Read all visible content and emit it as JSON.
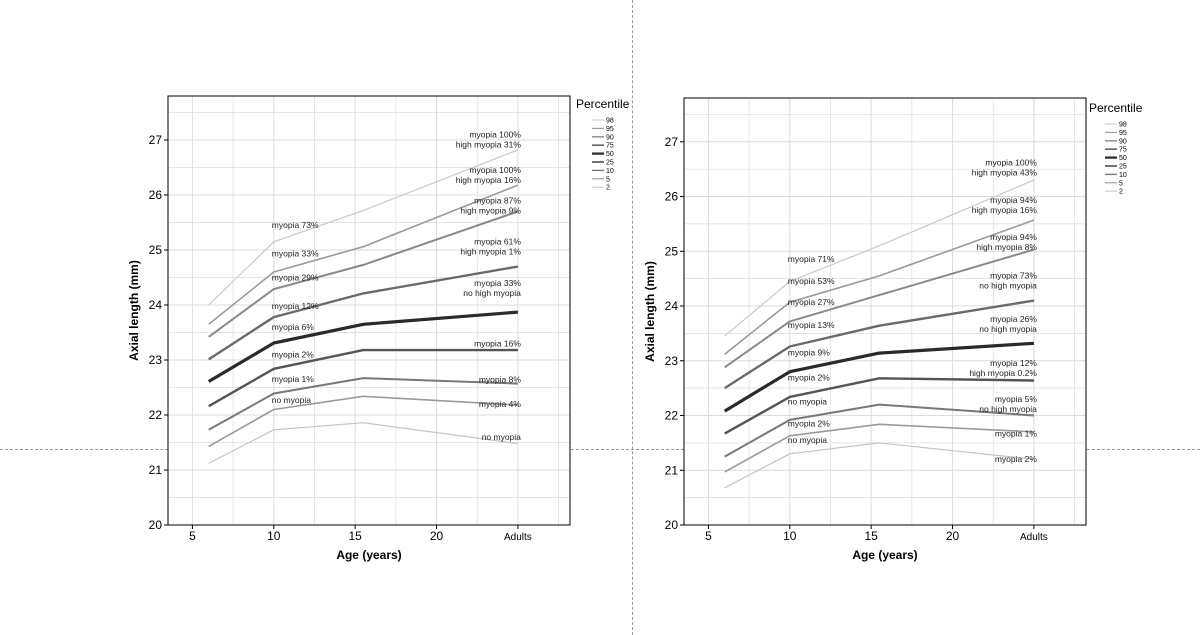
{
  "colors": {
    "p98": "#c8c8c8",
    "p95": "#9a9a9a",
    "p90": "#8a8a8a",
    "p75": "#6a6a6a",
    "p50": "#2a2a2a",
    "p25": "#555555",
    "p10": "#777777",
    "p5": "#9a9a9a",
    "p2": "#c4c4c4",
    "grid": "#dcdcdc",
    "axis": "#000000",
    "divider": "#9a9a9a"
  },
  "chart_data": [
    {
      "type": "line",
      "xlabel": "Age (years)",
      "ylabel": "Axial length (mm)",
      "xlim": [
        3.5,
        28.2
      ],
      "ylim": [
        20,
        27.8
      ],
      "x_ticks": [
        {
          "value": 5,
          "label": "5"
        },
        {
          "value": 10,
          "label": "10"
        },
        {
          "value": 15,
          "label": "15"
        },
        {
          "value": 20,
          "label": "20"
        },
        {
          "value": 25,
          "label": "Adults"
        }
      ],
      "y_ticks": [
        20,
        21,
        22,
        23,
        24,
        25,
        26,
        27
      ],
      "x": [
        6,
        10,
        15.5,
        25
      ],
      "legend_title": "Percentile",
      "legend_position": "right",
      "series": [
        {
          "name": "98",
          "color_key": "p98",
          "width": 1.2,
          "values": [
            24.0,
            25.15,
            25.72,
            26.82
          ]
        },
        {
          "name": "95",
          "color_key": "p95",
          "width": 1.6,
          "values": [
            23.65,
            24.6,
            25.06,
            26.18
          ]
        },
        {
          "name": "90",
          "color_key": "p90",
          "width": 2.0,
          "values": [
            23.42,
            24.29,
            24.73,
            25.7
          ]
        },
        {
          "name": "75",
          "color_key": "p75",
          "width": 2.4,
          "values": [
            23.01,
            23.78,
            24.21,
            24.7
          ]
        },
        {
          "name": "50",
          "color_key": "p50",
          "width": 3.2,
          "values": [
            22.61,
            23.31,
            23.65,
            23.87
          ]
        },
        {
          "name": "25",
          "color_key": "p25",
          "width": 2.4,
          "values": [
            22.16,
            22.84,
            23.18,
            23.18
          ]
        },
        {
          "name": "10",
          "color_key": "p10",
          "width": 2.0,
          "values": [
            21.73,
            22.39,
            22.67,
            22.57
          ]
        },
        {
          "name": "5",
          "color_key": "p5",
          "width": 1.6,
          "values": [
            21.43,
            22.1,
            22.34,
            22.18
          ]
        },
        {
          "name": "2",
          "color_key": "p2",
          "width": 1.2,
          "values": [
            21.12,
            21.73,
            21.86,
            21.48
          ]
        }
      ],
      "annotations_mid": [
        {
          "x": 10,
          "y": 25.4,
          "text": "myopia 73%"
        },
        {
          "x": 10,
          "y": 24.88,
          "text": "myopia 33%"
        },
        {
          "x": 10,
          "y": 24.45,
          "text": "myopia 29%"
        },
        {
          "x": 10,
          "y": 23.93,
          "text": "myopia 12%"
        },
        {
          "x": 10,
          "y": 23.55,
          "text": "myopia 6%"
        },
        {
          "x": 10,
          "y": 23.05,
          "text": "myopia 2%"
        },
        {
          "x": 10,
          "y": 22.6,
          "text": "myopia 1%"
        },
        {
          "x": 10,
          "y": 22.22,
          "text": "no myopia"
        }
      ],
      "annotations_end": [
        {
          "y": 27.05,
          "lines": [
            "myopia 100%",
            "high myopia 31%"
          ]
        },
        {
          "y": 26.4,
          "lines": [
            "myopia 100%",
            "high myopia 16%"
          ]
        },
        {
          "y": 25.85,
          "lines": [
            "myopia 87%",
            "high myopia 9%"
          ]
        },
        {
          "y": 25.1,
          "lines": [
            "myopia 61%",
            "high myopia 1%"
          ]
        },
        {
          "y": 24.35,
          "lines": [
            "myopia 33%",
            "no high myopia"
          ]
        },
        {
          "y": 23.43,
          "lines": [
            "myopia 16%"
          ]
        },
        {
          "y": 22.77,
          "lines": [
            "myopia 8%"
          ]
        },
        {
          "y": 22.33,
          "lines": [
            "myopia 4%"
          ]
        },
        {
          "y": 21.73,
          "lines": [
            "no myopia"
          ]
        }
      ]
    },
    {
      "type": "line",
      "xlabel": "Age (years)",
      "ylabel": "Axial length (mm)",
      "xlim": [
        3.5,
        28.2
      ],
      "ylim": [
        20,
        27.8
      ],
      "x_ticks": [
        {
          "value": 5,
          "label": "5"
        },
        {
          "value": 10,
          "label": "10"
        },
        {
          "value": 15,
          "label": "15"
        },
        {
          "value": 20,
          "label": "20"
        },
        {
          "value": 25,
          "label": "Adults"
        }
      ],
      "y_ticks": [
        20,
        21,
        22,
        23,
        24,
        25,
        26,
        27
      ],
      "x": [
        6,
        10,
        15.5,
        25
      ],
      "legend_title": "Percentile",
      "legend_position": "right",
      "series": [
        {
          "name": "98",
          "color_key": "p98",
          "width": 1.2,
          "values": [
            23.45,
            24.45,
            25.1,
            26.3
          ]
        },
        {
          "name": "95",
          "color_key": "p95",
          "width": 1.6,
          "values": [
            23.12,
            24.07,
            24.55,
            25.57
          ]
        },
        {
          "name": "90",
          "color_key": "p90",
          "width": 2.0,
          "values": [
            22.88,
            23.72,
            24.2,
            25.03
          ]
        },
        {
          "name": "75",
          "color_key": "p75",
          "width": 2.4,
          "values": [
            22.5,
            23.26,
            23.64,
            24.1
          ]
        },
        {
          "name": "50",
          "color_key": "p50",
          "width": 3.2,
          "values": [
            22.08,
            22.8,
            23.14,
            23.32
          ]
        },
        {
          "name": "25",
          "color_key": "p25",
          "width": 2.4,
          "values": [
            21.67,
            22.34,
            22.68,
            22.64
          ]
        },
        {
          "name": "10",
          "color_key": "p10",
          "width": 2.0,
          "values": [
            21.25,
            21.92,
            22.2,
            22.0
          ]
        },
        {
          "name": "5",
          "color_key": "p5",
          "width": 1.6,
          "values": [
            20.97,
            21.63,
            21.84,
            21.7
          ]
        },
        {
          "name": "2",
          "color_key": "p2",
          "width": 1.2,
          "values": [
            20.68,
            21.3,
            21.5,
            21.2
          ]
        }
      ],
      "annotations_mid": [
        {
          "x": 10,
          "y": 24.8,
          "text": "myopia 71%"
        },
        {
          "x": 10,
          "y": 24.4,
          "text": "myopia 53%"
        },
        {
          "x": 10,
          "y": 24.02,
          "text": "myopia 27%"
        },
        {
          "x": 10,
          "y": 23.6,
          "text": "myopia 13%"
        },
        {
          "x": 10,
          "y": 23.1,
          "text": "myopia 9%"
        },
        {
          "x": 10,
          "y": 22.64,
          "text": "myopia 2%"
        },
        {
          "x": 10,
          "y": 22.2,
          "text": "no myopia"
        },
        {
          "x": 10,
          "y": 21.8,
          "text": "myopia 2%"
        },
        {
          "x": 10,
          "y": 21.5,
          "text": "no myopia"
        }
      ],
      "annotations_end": [
        {
          "y": 26.57,
          "lines": [
            "myopia 100%",
            "high myopia 43%"
          ]
        },
        {
          "y": 25.88,
          "lines": [
            "myopia 94%",
            "high myopia 16%"
          ]
        },
        {
          "y": 25.21,
          "lines": [
            "myopia 94%",
            "high myopia 8%"
          ]
        },
        {
          "y": 24.5,
          "lines": [
            "myopia 73%",
            "no high myopia"
          ]
        },
        {
          "y": 23.71,
          "lines": [
            "myopia 26%",
            "no high myopia"
          ]
        },
        {
          "y": 22.9,
          "lines": [
            "myopia 12%",
            "high myopia 0.2%"
          ]
        },
        {
          "y": 22.25,
          "lines": [
            "myopia 5%",
            "no high myopia"
          ]
        },
        {
          "y": 21.8,
          "lines": [
            "myopia 1%"
          ]
        },
        {
          "y": 21.33,
          "lines": [
            "myopia 2%"
          ]
        }
      ]
    }
  ]
}
